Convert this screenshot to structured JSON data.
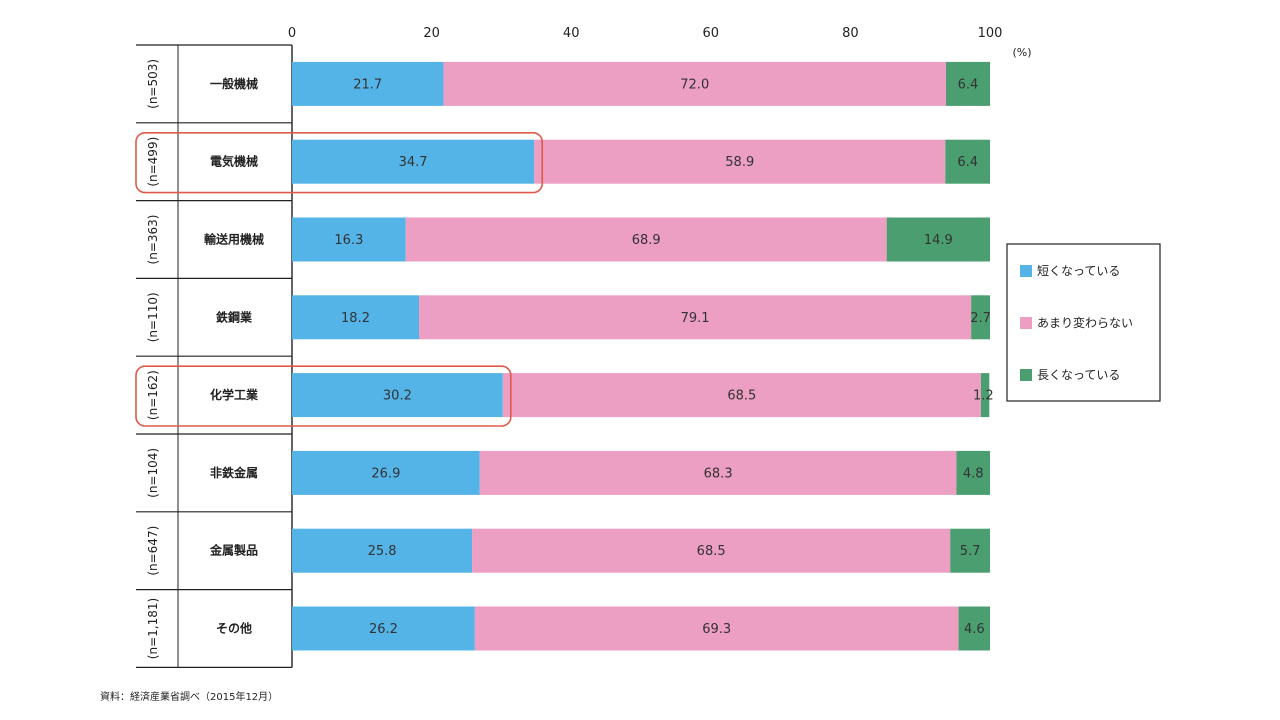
{
  "chart_data": {
    "type": "bar",
    "orientation": "horizontal",
    "stacked": true,
    "title": "",
    "xlabel": "",
    "ylabel": "",
    "xlim": [
      0,
      100
    ],
    "x_ticks": [
      "0",
      "20",
      "40",
      "60",
      "80",
      "100"
    ],
    "x_unit": "(%)",
    "categories": [
      "一般機械",
      "電気機械",
      "輸送用機械",
      "鉄鋼業",
      "化学工業",
      "非鉄金属",
      "金属製品",
      "その他"
    ],
    "sample_sizes": [
      "(n=503)",
      "(n=499)",
      "(n=363)",
      "(n=110)",
      "(n=162)",
      "(n=104)",
      "(n=647)",
      "(n=1,181)"
    ],
    "series": [
      {
        "name": "短くなっている",
        "color": "#54b4e8",
        "values": [
          21.7,
          34.7,
          16.3,
          18.2,
          30.2,
          26.9,
          25.8,
          26.2
        ]
      },
      {
        "name": "あまり変わらない",
        "color": "#ec9ec3",
        "values": [
          72.0,
          58.9,
          68.9,
          79.1,
          68.5,
          68.3,
          68.5,
          69.3
        ]
      },
      {
        "name": "長くなっている",
        "color": "#4a9e70",
        "values": [
          6.4,
          6.4,
          14.9,
          2.7,
          1.2,
          4.8,
          5.7,
          4.6
        ]
      }
    ],
    "highlighted_categories": [
      "電気機械",
      "化学工業"
    ],
    "highlight_color": "#e05a4a",
    "legend_position": "right",
    "grid": false,
    "source_note": "資料：経済産業省調べ（2015年12月）"
  }
}
